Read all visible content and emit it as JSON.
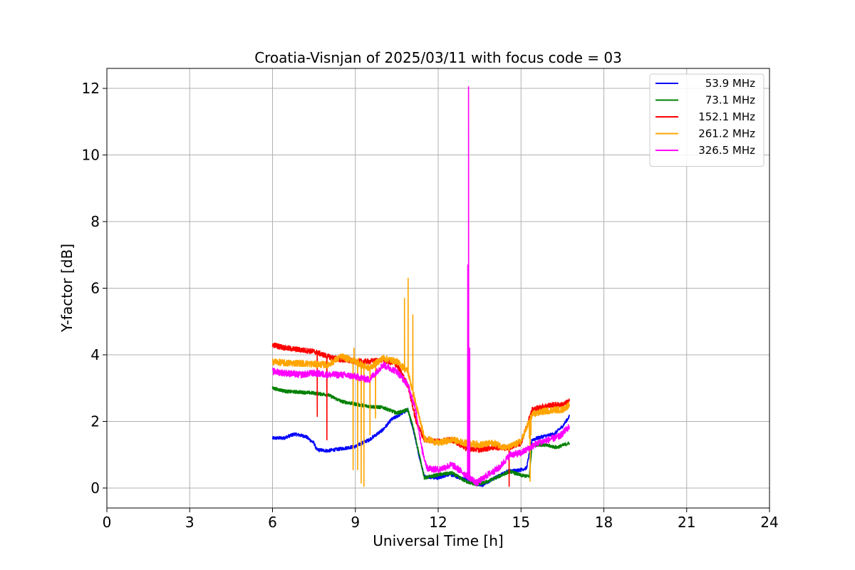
{
  "chart_data": {
    "type": "line",
    "title": "Croatia-Visnjan of 2025/03/11 with focus code = 03",
    "xlabel": "Universal Time [h]",
    "ylabel": "Y-factor [dB]",
    "xlim": [
      0,
      24
    ],
    "ylim": [
      -0.6,
      12.6
    ],
    "xticks": [
      "0",
      "3",
      "6",
      "9",
      "12",
      "15",
      "18",
      "21",
      "24"
    ],
    "xtick_values": [
      0,
      3,
      6,
      9,
      12,
      15,
      18,
      21,
      24
    ],
    "yticks": [
      "0",
      "2",
      "4",
      "6",
      "8",
      "10",
      "12"
    ],
    "ytick_values": [
      0,
      2,
      4,
      6,
      8,
      10,
      12
    ],
    "grid": true,
    "legend_position": "top-right",
    "series": [
      {
        "name": "53.9 MHz",
        "color": "#0000ff",
        "noise": 0.05,
        "points": [
          [
            6.0,
            1.5
          ],
          [
            6.4,
            1.5
          ],
          [
            6.8,
            1.62
          ],
          [
            7.2,
            1.55
          ],
          [
            7.5,
            1.35
          ],
          [
            7.6,
            1.15
          ],
          [
            8.0,
            1.12
          ],
          [
            8.5,
            1.18
          ],
          [
            9.0,
            1.25
          ],
          [
            9.5,
            1.45
          ],
          [
            10.0,
            1.75
          ],
          [
            10.3,
            2.05
          ],
          [
            10.6,
            2.2
          ],
          [
            10.9,
            2.35
          ],
          [
            11.1,
            1.75
          ],
          [
            11.3,
            1.0
          ],
          [
            11.5,
            0.35
          ],
          [
            12.0,
            0.3
          ],
          [
            12.4,
            0.42
          ],
          [
            12.8,
            0.3
          ],
          [
            13.2,
            0.22
          ],
          [
            13.6,
            0.08
          ],
          [
            14.0,
            0.28
          ],
          [
            14.5,
            0.5
          ],
          [
            15.0,
            0.55
          ],
          [
            15.2,
            0.6
          ],
          [
            15.4,
            1.45
          ],
          [
            15.8,
            1.55
          ],
          [
            16.2,
            1.62
          ],
          [
            16.5,
            1.85
          ],
          [
            16.75,
            2.15
          ]
        ]
      },
      {
        "name": "73.1 MHz",
        "color": "#008000",
        "noise": 0.05,
        "points": [
          [
            6.0,
            3.0
          ],
          [
            6.5,
            2.9
          ],
          [
            7.0,
            2.88
          ],
          [
            7.5,
            2.85
          ],
          [
            8.0,
            2.8
          ],
          [
            8.5,
            2.6
          ],
          [
            9.0,
            2.52
          ],
          [
            9.5,
            2.45
          ],
          [
            10.0,
            2.42
          ],
          [
            10.5,
            2.25
          ],
          [
            10.9,
            2.35
          ],
          [
            11.1,
            1.8
          ],
          [
            11.3,
            1.05
          ],
          [
            11.5,
            0.3
          ],
          [
            12.0,
            0.4
          ],
          [
            12.5,
            0.45
          ],
          [
            13.0,
            0.2
          ],
          [
            13.4,
            0.1
          ],
          [
            13.8,
            0.2
          ],
          [
            14.2,
            0.35
          ],
          [
            14.6,
            0.5
          ],
          [
            15.0,
            0.38
          ],
          [
            15.3,
            0.35
          ],
          [
            15.4,
            1.3
          ],
          [
            15.8,
            1.3
          ],
          [
            16.3,
            1.22
          ],
          [
            16.5,
            1.28
          ],
          [
            16.75,
            1.35
          ]
        ]
      },
      {
        "name": "152.1 MHz",
        "color": "#ff0000",
        "noise": 0.08,
        "points": [
          [
            6.0,
            4.3
          ],
          [
            6.5,
            4.2
          ],
          [
            7.0,
            4.15
          ],
          [
            7.5,
            4.1
          ],
          [
            8.0,
            3.95
          ],
          [
            8.5,
            3.85
          ],
          [
            9.0,
            3.8
          ],
          [
            9.5,
            3.8
          ],
          [
            10.0,
            3.85
          ],
          [
            10.5,
            3.7
          ],
          [
            10.9,
            3.1
          ],
          [
            11.2,
            2.0
          ],
          [
            11.5,
            1.45
          ],
          [
            12.0,
            1.4
          ],
          [
            12.5,
            1.45
          ],
          [
            13.0,
            1.2
          ],
          [
            13.5,
            1.15
          ],
          [
            14.0,
            1.22
          ],
          [
            14.5,
            1.2
          ],
          [
            15.0,
            1.35
          ],
          [
            15.4,
            2.35
          ],
          [
            15.8,
            2.45
          ],
          [
            16.2,
            2.5
          ],
          [
            16.5,
            2.5
          ],
          [
            16.75,
            2.6
          ]
        ]
      },
      {
        "name": "261.2 MHz",
        "color": "#ffa500",
        "noise": 0.1,
        "points": [
          [
            6.0,
            3.8
          ],
          [
            6.5,
            3.75
          ],
          [
            7.0,
            3.75
          ],
          [
            7.5,
            3.72
          ],
          [
            8.0,
            3.7
          ],
          [
            8.5,
            3.95
          ],
          [
            9.0,
            3.8
          ],
          [
            9.5,
            3.6
          ],
          [
            10.0,
            3.9
          ],
          [
            10.5,
            3.8
          ],
          [
            10.9,
            3.5
          ],
          [
            11.2,
            2.5
          ],
          [
            11.5,
            1.5
          ],
          [
            12.0,
            1.35
          ],
          [
            12.5,
            1.45
          ],
          [
            13.0,
            1.35
          ],
          [
            13.5,
            1.3
          ],
          [
            14.0,
            1.35
          ],
          [
            14.5,
            1.2
          ],
          [
            15.0,
            1.4
          ],
          [
            15.4,
            2.2
          ],
          [
            15.8,
            2.3
          ],
          [
            16.2,
            2.35
          ],
          [
            16.5,
            2.35
          ],
          [
            16.75,
            2.5
          ]
        ]
      },
      {
        "name": "326.5 MHz",
        "color": "#ff00ff",
        "noise": 0.1,
        "points": [
          [
            6.0,
            3.5
          ],
          [
            6.5,
            3.45
          ],
          [
            7.0,
            3.4
          ],
          [
            7.5,
            3.45
          ],
          [
            8.0,
            3.4
          ],
          [
            8.5,
            3.4
          ],
          [
            9.0,
            3.35
          ],
          [
            9.5,
            3.25
          ],
          [
            10.0,
            3.7
          ],
          [
            10.5,
            3.5
          ],
          [
            10.9,
            3.1
          ],
          [
            11.2,
            2.3
          ],
          [
            11.4,
            1.2
          ],
          [
            11.6,
            0.6
          ],
          [
            12.0,
            0.55
          ],
          [
            12.5,
            0.7
          ],
          [
            13.0,
            0.4
          ],
          [
            13.4,
            0.15
          ],
          [
            13.8,
            0.4
          ],
          [
            14.2,
            0.6
          ],
          [
            14.6,
            1.0
          ],
          [
            15.0,
            1.05
          ],
          [
            15.3,
            1.2
          ],
          [
            15.6,
            1.35
          ],
          [
            16.0,
            1.45
          ],
          [
            16.4,
            1.55
          ],
          [
            16.75,
            1.85
          ]
        ]
      }
    ],
    "spikes": [
      {
        "series": "152.1 MHz",
        "points": [
          [
            7.6,
            4.1
          ],
          [
            7.62,
            2.15
          ],
          [
            7.64,
            4.1
          ],
          [
            7.95,
            3.95
          ],
          [
            7.97,
            1.45
          ],
          [
            7.99,
            3.95
          ],
          [
            14.55,
            1.2
          ],
          [
            14.57,
            0.05
          ],
          [
            14.59,
            1.2
          ]
        ]
      },
      {
        "series": "261.2 MHz",
        "points": [
          [
            8.9,
            3.9
          ],
          [
            8.92,
            0.55
          ],
          [
            8.95,
            4.2
          ],
          [
            9.05,
            3.8
          ],
          [
            9.08,
            0.55
          ],
          [
            9.11,
            3.9
          ],
          [
            9.18,
            3.7
          ],
          [
            9.21,
            0.15
          ],
          [
            9.24,
            3.6
          ],
          [
            9.28,
            3.6
          ],
          [
            9.31,
            0.05
          ],
          [
            9.34,
            3.7
          ],
          [
            9.5,
            3.6
          ],
          [
            9.53,
            1.6
          ],
          [
            9.56,
            3.7
          ],
          [
            9.7,
            3.7
          ],
          [
            9.73,
            2.1
          ],
          [
            9.76,
            3.8
          ],
          [
            10.75,
            3.7
          ],
          [
            10.78,
            5.7
          ],
          [
            10.81,
            3.5
          ],
          [
            10.88,
            3.6
          ],
          [
            10.91,
            6.3
          ],
          [
            10.94,
            3.4
          ],
          [
            11.05,
            3.0
          ],
          [
            11.08,
            5.2
          ],
          [
            11.11,
            2.8
          ],
          [
            15.3,
            1.5
          ],
          [
            15.33,
            0.2
          ],
          [
            15.36,
            1.6
          ]
        ]
      },
      {
        "series": "326.5 MHz",
        "points": [
          [
            13.05,
            0.4
          ],
          [
            13.07,
            6.7
          ],
          [
            13.08,
            0.5
          ],
          [
            13.1,
            12.05
          ],
          [
            13.12,
            0.6
          ],
          [
            13.14,
            4.2
          ],
          [
            13.16,
            0.3
          ]
        ]
      }
    ]
  }
}
